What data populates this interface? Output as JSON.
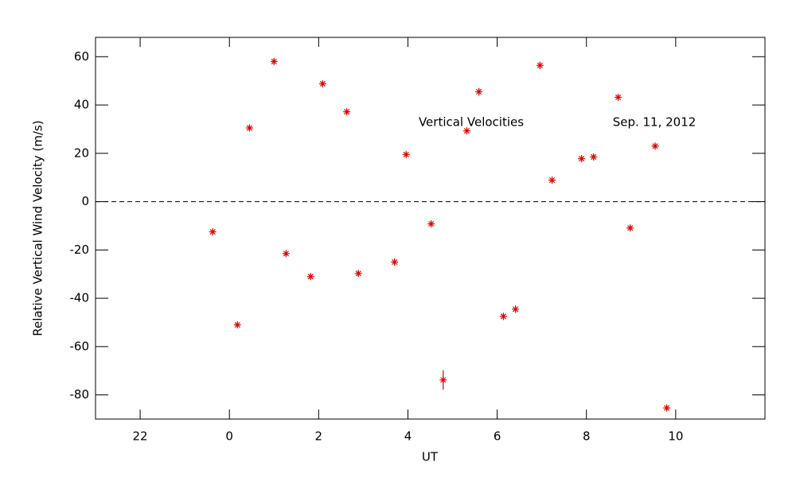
{
  "chart_data": {
    "type": "scatter",
    "xlabel": "UT",
    "ylabel": "Relative Vertical Wind Velocity (m/s)",
    "annotations": [
      "Vertical Velocities",
      "Sep. 11, 2012"
    ],
    "xlim": [
      -3,
      12
    ],
    "ylim": [
      -90,
      68
    ],
    "xticks": [
      {
        "value": -2,
        "label": "22"
      },
      0,
      2,
      4,
      6,
      8,
      10
    ],
    "yticks": [
      -80,
      -60,
      -40,
      -20,
      0,
      20,
      40,
      60
    ],
    "reference_line": 0,
    "series": [
      {
        "name": "Vertical Velocities",
        "color": "#e00000",
        "x": [
          -0.375,
          0.18,
          0.45,
          1.0,
          1.27,
          1.82,
          2.09,
          2.63,
          2.89,
          3.7,
          3.96,
          4.52,
          4.79,
          5.32,
          5.59,
          6.14,
          6.41,
          6.96,
          7.23,
          7.89,
          8.16,
          8.71,
          8.98,
          9.54,
          9.8
        ],
        "values": [
          -12.5,
          -51,
          30.5,
          58,
          -21.5,
          -31,
          48.8,
          37.2,
          -29.7,
          -25,
          19.5,
          -9.2,
          -73.8,
          29.3,
          45.5,
          -47.5,
          -44.5,
          56.4,
          8.9,
          17.8,
          18.5,
          43.2,
          -10.9,
          23,
          -85.4
        ],
        "errors": [
          1,
          1,
          1,
          1,
          1,
          1,
          1,
          1,
          1,
          1,
          1,
          1,
          4,
          1,
          1.5,
          1.5,
          1.5,
          1.5,
          1,
          1,
          1,
          1,
          1,
          1,
          1
        ]
      }
    ]
  }
}
